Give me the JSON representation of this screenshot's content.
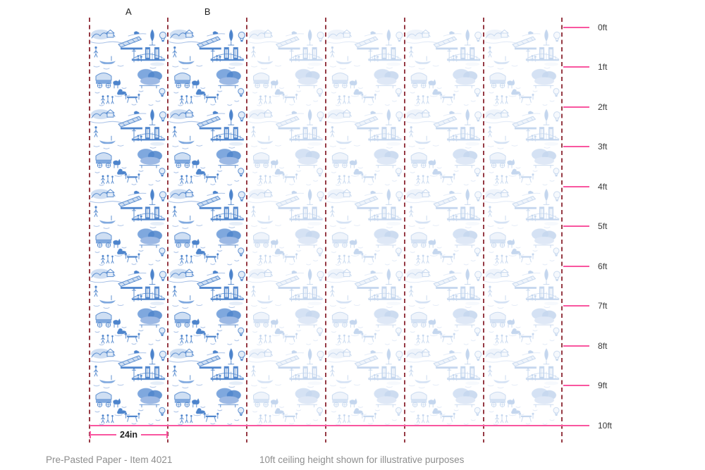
{
  "diagram": {
    "panel_labels": [
      "A",
      "B"
    ],
    "panel_count": 6,
    "width_label": "24in",
    "ruler_ticks": [
      "0ft",
      "1ft",
      "2ft",
      "3ft",
      "4ft",
      "5ft",
      "6ft",
      "7ft",
      "8ft",
      "9ft",
      "10ft"
    ],
    "footer_left": "Pre-Pasted Paper - Item 4021",
    "footer_right": "10ft ceiling height shown for illustrative purposes"
  },
  "colors": {
    "pattern_blue": "#4d84cc",
    "pattern_blue_mid": "#7fa8de",
    "pattern_blue_light": "#9db9e4",
    "pattern_wash": "#e4edf8",
    "divider_maroon": "#963a44",
    "measure_pink": "#f9569f",
    "tick_label": "#3a3a3a",
    "caption_gray": "#8e8e8e"
  }
}
